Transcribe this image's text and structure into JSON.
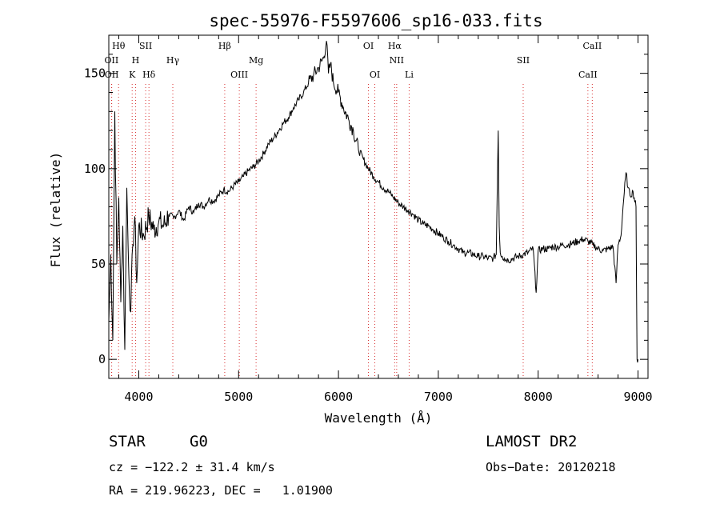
{
  "chart_data": {
    "type": "line",
    "title": "spec-55976-F5597606_sp16-033.fits",
    "xlabel": "Wavelength (Å)",
    "ylabel": "Flux (relative)",
    "xlim": [
      3700,
      9100
    ],
    "ylim": [
      -10,
      170
    ],
    "x_ticks": [
      4000,
      5000,
      6000,
      7000,
      8000,
      9000
    ],
    "y_ticks": [
      0,
      50,
      100,
      150
    ],
    "grid": false,
    "series": [
      {
        "x": [
          3700,
          3720,
          3740,
          3760,
          3780,
          3800,
          3820,
          3840,
          3860,
          3880,
          3900,
          3920,
          3940,
          3960,
          3980,
          4000,
          4050,
          4100,
          4150,
          4200,
          4250,
          4300,
          4350,
          4400,
          4450,
          4500,
          4550,
          4600,
          4650,
          4700,
          4750,
          4800,
          4850,
          4900,
          4950,
          5000,
          5050,
          5100,
          5150,
          5200,
          5250,
          5300,
          5350,
          5400,
          5450,
          5500,
          5550,
          5600,
          5650,
          5700,
          5750,
          5800,
          5850,
          5880,
          5900,
          5920,
          5950,
          6000,
          6050,
          6100,
          6150,
          6200,
          6250,
          6300,
          6350,
          6400,
          6450,
          6500,
          6550,
          6600,
          6650,
          6700,
          6750,
          6800,
          6850,
          6900,
          6950,
          7000,
          7050,
          7100,
          7150,
          7200,
          7250,
          7300,
          7350,
          7400,
          7450,
          7500,
          7550,
          7580,
          7600,
          7610,
          7620,
          7640,
          7660,
          7700,
          7750,
          7800,
          7850,
          7900,
          7950,
          7980,
          8000,
          8050,
          8100,
          8150,
          8200,
          8250,
          8300,
          8350,
          8400,
          8450,
          8500,
          8550,
          8600,
          8650,
          8700,
          8750,
          8780,
          8800,
          8830,
          8850,
          8880,
          8900,
          8920,
          8950,
          8980,
          8990,
          9000
        ],
        "values": [
          20,
          55,
          10,
          130,
          50,
          85,
          30,
          70,
          5,
          90,
          45,
          25,
          60,
          75,
          40,
          70,
          65,
          75,
          68,
          72,
          70,
          76,
          74,
          78,
          73,
          80,
          77,
          82,
          80,
          84,
          83,
          86,
          89,
          88,
          91,
          93,
          96,
          99,
          101,
          104,
          108,
          113,
          116,
          120,
          124,
          127,
          132,
          136,
          140,
          145,
          149,
          153,
          158,
          167,
          150,
          155,
          145,
          140,
          132,
          126,
          120,
          110,
          105,
          100,
          96,
          93,
          90,
          88,
          85,
          82,
          80,
          78,
          76,
          73,
          71,
          70,
          68,
          66,
          64,
          62,
          60,
          58,
          56,
          56,
          55,
          54,
          54,
          53,
          53,
          55,
          120,
          70,
          56,
          54,
          53,
          52,
          53,
          54,
          55,
          56,
          58,
          35,
          57,
          58,
          58,
          59,
          59,
          60,
          60,
          61,
          62,
          63,
          62,
          60,
          58,
          57,
          58,
          59,
          40,
          60,
          65,
          80,
          98,
          90,
          86,
          88,
          80,
          0,
          0
        ]
      }
    ],
    "line_marks": [
      {
        "label": "Hθ",
        "x": 3798,
        "row": 1
      },
      {
        "label": "OII",
        "x": 3727,
        "row": 2
      },
      {
        "label": "OII",
        "x": 3729,
        "row": 3
      },
      {
        "label": "SII",
        "x": 4069,
        "row": 1
      },
      {
        "label": "H",
        "x": 3968,
        "row": 2
      },
      {
        "label": "K",
        "x": 3934,
        "row": 3
      },
      {
        "label": "Hδ",
        "x": 4102,
        "row": 3
      },
      {
        "label": "Hγ",
        "x": 4341,
        "row": 2
      },
      {
        "label": "Hβ",
        "x": 4861,
        "row": 1
      },
      {
        "label": "OIII",
        "x": 5007,
        "row": 3
      },
      {
        "label": "Mg",
        "x": 5175,
        "row": 2
      },
      {
        "label": "OI",
        "x": 6300,
        "row": 1
      },
      {
        "label": "OI",
        "x": 6364,
        "row": 3
      },
      {
        "label": "Hα",
        "x": 6563,
        "row": 1
      },
      {
        "label": "NII",
        "x": 6583,
        "row": 2
      },
      {
        "label": "Li",
        "x": 6708,
        "row": 3
      },
      {
        "label": "SII",
        "x": 7850,
        "row": 2
      },
      {
        "label": "CaII",
        "x": 8542,
        "row": 1
      },
      {
        "label": "CaII",
        "x": 8498,
        "row": 3
      }
    ],
    "line_mark_color": "#d83030"
  },
  "info": {
    "class": "STAR",
    "subclass": "G0",
    "survey": "LAMOST DR2",
    "cz": "cz = −122.2 ± 31.4 km/s",
    "obs_date": "Obs−Date: 20120218",
    "coords": "RA = 219.96223, DEC =   1.01900"
  }
}
